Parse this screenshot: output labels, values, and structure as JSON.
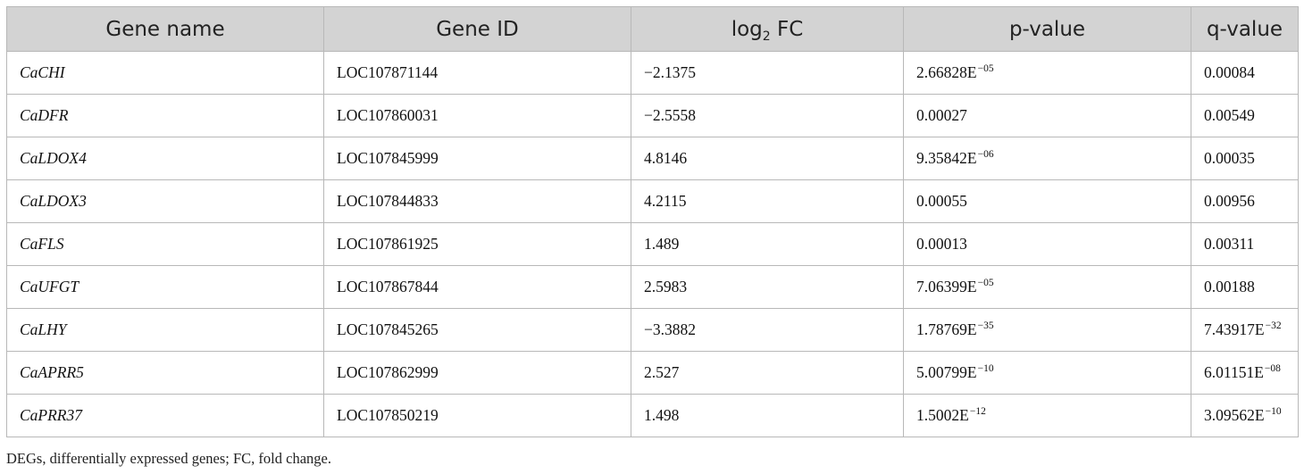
{
  "table": {
    "headers": [
      {
        "base": "Gene name",
        "sub": "",
        "rest": ""
      },
      {
        "base": "Gene ID",
        "sub": "",
        "rest": ""
      },
      {
        "base": "log",
        "sub": "2",
        "rest": " FC"
      },
      {
        "base": "p-value",
        "sub": "",
        "rest": ""
      },
      {
        "base": "q-value",
        "sub": "",
        "rest": ""
      }
    ],
    "rows": [
      {
        "gene": "CaCHI",
        "id": "LOC107871144",
        "log2fc": "−2.1375",
        "p": {
          "base": "2.66828E",
          "exp": "−05"
        },
        "q": {
          "base": "0.00084",
          "exp": ""
        }
      },
      {
        "gene": "CaDFR",
        "id": "LOC107860031",
        "log2fc": "−2.5558",
        "p": {
          "base": "0.00027",
          "exp": ""
        },
        "q": {
          "base": "0.00549",
          "exp": ""
        }
      },
      {
        "gene": "CaLDOX4",
        "id": "LOC107845999",
        "log2fc": "4.8146",
        "p": {
          "base": "9.35842E",
          "exp": "−06"
        },
        "q": {
          "base": "0.00035",
          "exp": ""
        }
      },
      {
        "gene": "CaLDOX3",
        "id": "LOC107844833",
        "log2fc": "4.2115",
        "p": {
          "base": "0.00055",
          "exp": ""
        },
        "q": {
          "base": "0.00956",
          "exp": ""
        }
      },
      {
        "gene": "CaFLS",
        "id": "LOC107861925",
        "log2fc": "1.489",
        "p": {
          "base": "0.00013",
          "exp": ""
        },
        "q": {
          "base": "0.00311",
          "exp": ""
        }
      },
      {
        "gene": "CaUFGT",
        "id": "LOC107867844",
        "log2fc": "2.5983",
        "p": {
          "base": "7.06399E",
          "exp": "−05"
        },
        "q": {
          "base": "0.00188",
          "exp": ""
        }
      },
      {
        "gene": "CaLHY",
        "id": "LOC107845265",
        "log2fc": "−3.3882",
        "p": {
          "base": "1.78769E",
          "exp": "−35"
        },
        "q": {
          "base": "7.43917E",
          "exp": "−32"
        }
      },
      {
        "gene": "CaAPRR5",
        "id": "LOC107862999",
        "log2fc": "2.527",
        "p": {
          "base": "5.00799E",
          "exp": "−10"
        },
        "q": {
          "base": "6.01151E",
          "exp": "−08"
        }
      },
      {
        "gene": "CaPRR37",
        "id": "LOC107850219",
        "log2fc": "1.498",
        "p": {
          "base": "1.5002E",
          "exp": "−12"
        },
        "q": {
          "base": "3.09562E",
          "exp": "−10"
        }
      }
    ]
  },
  "footnote": "DEGs, differentially expressed genes; FC, fold change."
}
